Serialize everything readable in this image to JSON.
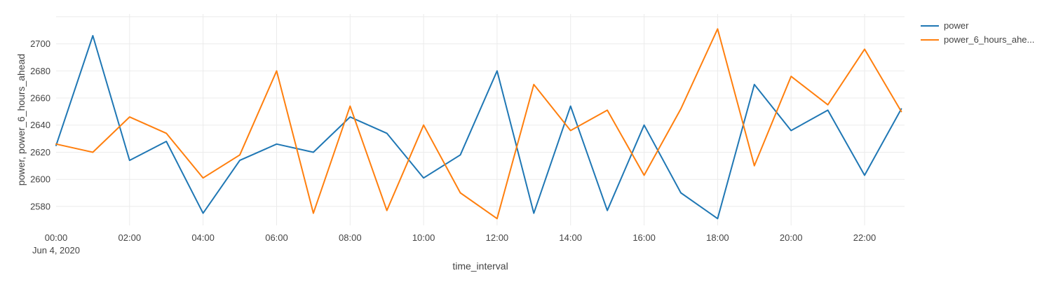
{
  "figure": {
    "date_annotation": "Jun 4, 2020"
  },
  "legend": {
    "position": "top-right",
    "items": [
      {
        "label": "power",
        "color": "#1f77b4"
      },
      {
        "label": "power_6_hours_ahe...",
        "color": "#ff7f0e"
      }
    ]
  },
  "colors": {
    "series_power": "#1f77b4",
    "series_ahead": "#ff7f0e",
    "grid": "#ebebeb",
    "text": "#444444",
    "background": "#ffffff"
  },
  "chart_data": {
    "type": "line",
    "title": "",
    "xlabel": "time_interval",
    "ylabel": "power, power_6_hours_ahead",
    "x_date": "Jun 4, 2020",
    "x": [
      "00:00",
      "01:00",
      "02:00",
      "03:00",
      "04:00",
      "05:00",
      "06:00",
      "07:00",
      "08:00",
      "09:00",
      "10:00",
      "11:00",
      "12:00",
      "13:00",
      "14:00",
      "15:00",
      "16:00",
      "17:00",
      "18:00",
      "19:00",
      "20:00",
      "21:00",
      "22:00",
      "23:00"
    ],
    "series": [
      {
        "name": "power",
        "legend_label": "power",
        "color": "#1f77b4",
        "values": [
          2625,
          2706,
          2614,
          2628,
          2575,
          2614,
          2626,
          2620,
          2646,
          2634,
          2601,
          2618,
          2680,
          2575,
          2654,
          2577,
          2640,
          2590,
          2571,
          2670,
          2636,
          2651,
          2603,
          2652
        ]
      },
      {
        "name": "power_6_hours_ahead",
        "legend_label": "power_6_hours_ahe...",
        "color": "#ff7f0e",
        "values": [
          2626,
          2620,
          2646,
          2634,
          2601,
          2618,
          2680,
          2575,
          2654,
          2577,
          2640,
          2590,
          2571,
          2670,
          2636,
          2651,
          2603,
          2652,
          2711,
          2610,
          2676,
          2655,
          2696,
          2650
        ]
      }
    ],
    "xticks": [
      "00:00",
      "02:00",
      "04:00",
      "06:00",
      "08:00",
      "10:00",
      "12:00",
      "14:00",
      "16:00",
      "18:00",
      "20:00",
      "22:00"
    ],
    "yticks": [
      2580,
      2600,
      2620,
      2640,
      2660,
      2680,
      2700
    ],
    "ygrid": [
      2580,
      2600,
      2620,
      2640,
      2660,
      2680,
      2700,
      2720
    ],
    "ylim": [
      2566,
      2722
    ],
    "grid": true,
    "legend_position": "top-right"
  }
}
